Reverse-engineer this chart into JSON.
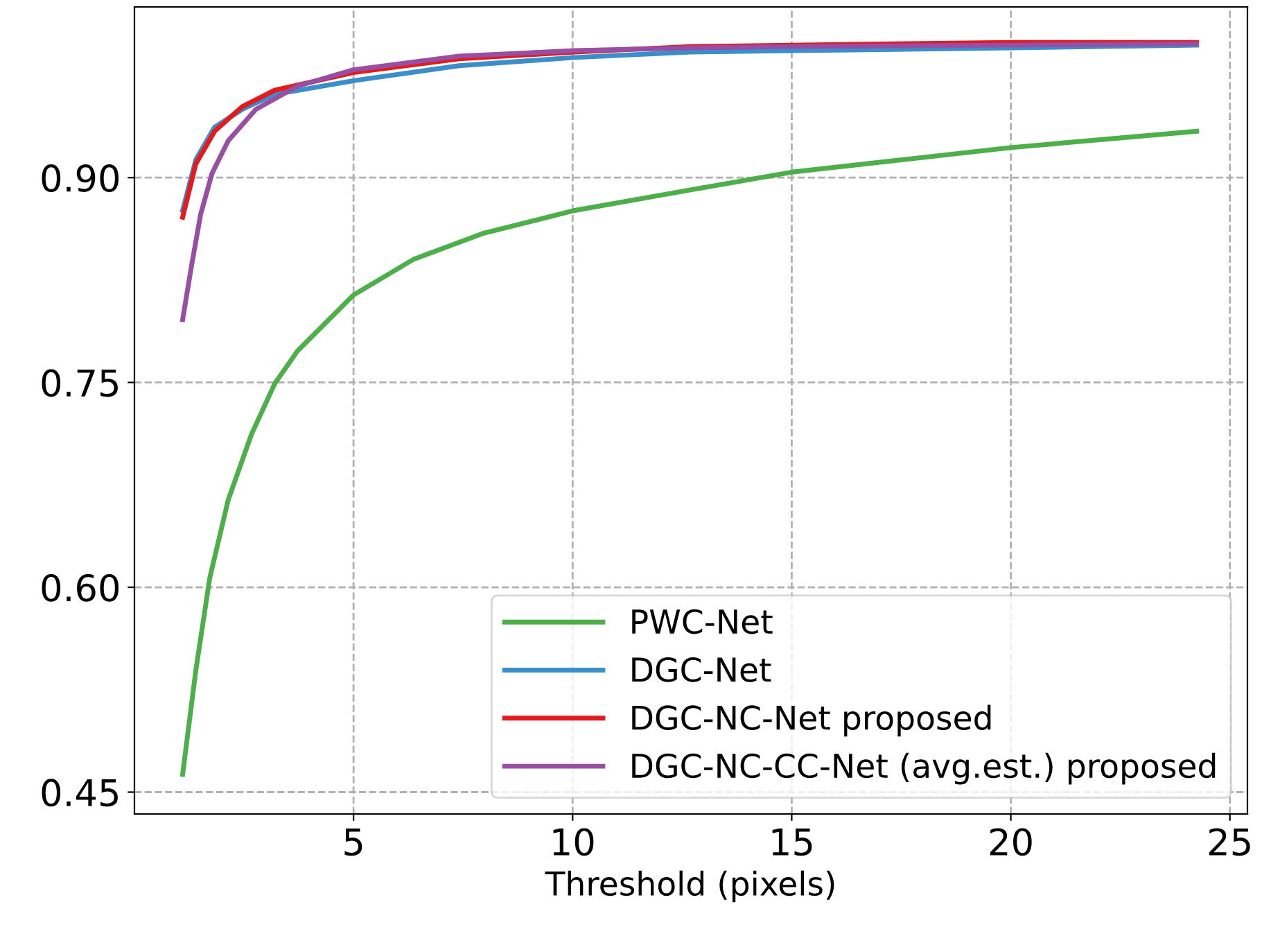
{
  "chart_data": {
    "type": "line",
    "xlabel": "Threshold (pixels)",
    "xlim": [
      0.0,
      25.4
    ],
    "ylim": [
      0.434,
      1.025
    ],
    "xticks": [
      5,
      10,
      15,
      20,
      25
    ],
    "yticks": [
      {
        "value": 0.45,
        "label": "0.45"
      },
      {
        "value": 0.6,
        "label": "0.60"
      },
      {
        "value": 0.75,
        "label": "0.75"
      },
      {
        "value": 0.9,
        "label": "0.90"
      }
    ],
    "grid": true,
    "legend": "bottom right",
    "line_style": "solid",
    "marker": "none",
    "series": [
      {
        "name": "PWC-Net",
        "color": "#4daf4a",
        "x": [
          1.1,
          1.4,
          1.72,
          2.14,
          2.67,
          3.2,
          3.72,
          5.0,
          6.36,
          7.94,
          10.05,
          12.69,
          15,
          20,
          24.24
        ],
        "values": [
          0.463,
          0.539,
          0.607,
          0.664,
          0.712,
          0.749,
          0.773,
          0.814,
          0.84,
          0.859,
          0.876,
          0.891,
          0.904,
          0.922,
          0.934
        ]
      },
      {
        "name": "DGC-Net",
        "color": "#3a8fcb",
        "x": [
          1.1,
          1.4,
          1.83,
          2.46,
          3.2,
          5.0,
          7.41,
          10.05,
          12.69,
          15,
          20,
          24.24
        ],
        "values": [
          0.876,
          0.913,
          0.937,
          0.95,
          0.961,
          0.971,
          0.982,
          0.988,
          0.992,
          0.993,
          0.995,
          0.997
        ]
      },
      {
        "name": "DGC-NC-Net proposed",
        "color": "#e41a1c",
        "x": [
          1.1,
          1.4,
          1.83,
          2.46,
          3.2,
          5.0,
          7.41,
          10.05,
          12.69,
          15,
          20,
          24.24
        ],
        "values": [
          0.871,
          0.91,
          0.934,
          0.952,
          0.964,
          0.977,
          0.987,
          0.992,
          0.996,
          0.997,
          0.999,
          0.999
        ]
      },
      {
        "name": "DGC-NC-CC-Net (avg.est.) proposed",
        "color": "#984ea3",
        "x": [
          1.1,
          1.3,
          1.51,
          1.77,
          2.14,
          2.77,
          3.72,
          5.0,
          7.41,
          10.05,
          12.69,
          15,
          20,
          24.24
        ],
        "values": [
          0.796,
          0.835,
          0.873,
          0.903,
          0.927,
          0.95,
          0.967,
          0.979,
          0.989,
          0.993,
          0.995,
          0.996,
          0.997,
          0.998
        ]
      }
    ]
  }
}
